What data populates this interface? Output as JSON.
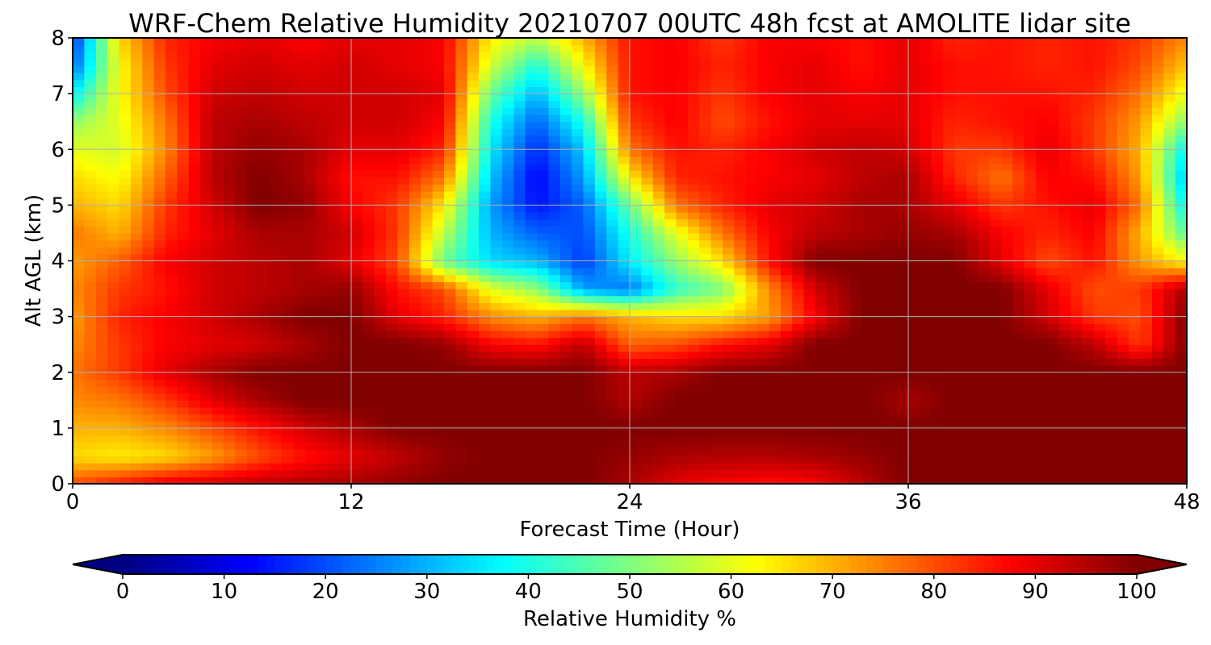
{
  "chart_data": {
    "type": "heatmap",
    "title": "WRF-Chem Relative Humidity 20210707 00UTC 48h fcst at AMOLITE lidar site",
    "xlabel": "Forecast Time (Hour)",
    "ylabel": "Alt AGL (km)",
    "xlim": [
      0,
      48
    ],
    "ylim": [
      0,
      8
    ],
    "x_ticks": [
      0,
      12,
      24,
      36,
      48
    ],
    "y_ticks": [
      0,
      1,
      2,
      3,
      4,
      5,
      6,
      7,
      8
    ],
    "grid": true,
    "colormap": "jet",
    "x": [
      0,
      2,
      4,
      6,
      8,
      10,
      12,
      14,
      16,
      18,
      20,
      22,
      24,
      26,
      28,
      30,
      32,
      34,
      36,
      38,
      40,
      42,
      44,
      46,
      48
    ],
    "y": [
      0,
      0.5,
      1,
      1.5,
      2,
      2.5,
      3,
      3.5,
      4,
      4.5,
      5,
      5.5,
      6,
      6.5,
      7,
      7.5,
      8
    ],
    "z": [
      [
        80,
        85,
        90,
        92,
        94,
        95,
        96,
        98,
        100,
        100,
        100,
        100,
        96,
        90,
        88,
        86,
        88,
        94,
        100,
        100,
        100,
        100,
        100,
        100,
        100
      ],
      [
        66,
        64,
        66,
        72,
        80,
        86,
        90,
        94,
        98,
        100,
        100,
        100,
        98,
        96,
        95,
        95,
        96,
        98,
        100,
        100,
        100,
        100,
        100,
        100,
        100
      ],
      [
        70,
        70,
        74,
        80,
        86,
        92,
        96,
        100,
        100,
        100,
        100,
        100,
        100,
        100,
        100,
        100,
        100,
        100,
        100,
        100,
        100,
        100,
        100,
        100,
        100
      ],
      [
        74,
        76,
        82,
        90,
        96,
        100,
        100,
        100,
        100,
        100,
        100,
        100,
        95,
        100,
        100,
        100,
        100,
        100,
        96,
        100,
        100,
        100,
        100,
        100,
        100
      ],
      [
        76,
        82,
        90,
        96,
        100,
        100,
        100,
        100,
        100,
        100,
        100,
        100,
        94,
        96,
        100,
        100,
        100,
        100,
        100,
        100,
        100,
        100,
        100,
        100,
        100
      ],
      [
        74,
        82,
        88,
        90,
        92,
        96,
        100,
        100,
        98,
        88,
        86,
        94,
        78,
        80,
        86,
        90,
        100,
        100,
        100,
        100,
        100,
        100,
        94,
        82,
        100
      ],
      [
        72,
        84,
        88,
        92,
        96,
        100,
        100,
        90,
        84,
        74,
        70,
        76,
        70,
        66,
        66,
        72,
        88,
        100,
        100,
        100,
        100,
        92,
        82,
        80,
        100
      ],
      [
        74,
        82,
        86,
        92,
        94,
        96,
        98,
        86,
        80,
        60,
        52,
        28,
        24,
        42,
        50,
        74,
        92,
        100,
        100,
        100,
        100,
        90,
        80,
        82,
        96
      ],
      [
        72,
        78,
        88,
        92,
        94,
        96,
        90,
        80,
        48,
        34,
        30,
        18,
        36,
        52,
        66,
        86,
        100,
        100,
        100,
        100,
        90,
        80,
        86,
        72,
        62
      ],
      [
        76,
        70,
        84,
        90,
        96,
        96,
        92,
        82,
        56,
        30,
        22,
        20,
        40,
        60,
        76,
        88,
        94,
        96,
        98,
        96,
        88,
        84,
        88,
        70,
        46
      ],
      [
        70,
        66,
        82,
        92,
        100,
        98,
        88,
        82,
        64,
        28,
        14,
        22,
        48,
        76,
        84,
        90,
        92,
        96,
        96,
        90,
        82,
        86,
        90,
        76,
        36
      ],
      [
        66,
        62,
        78,
        94,
        100,
        96,
        86,
        86,
        76,
        32,
        12,
        28,
        64,
        84,
        86,
        88,
        90,
        94,
        96,
        84,
        76,
        88,
        86,
        72,
        30
      ],
      [
        60,
        58,
        74,
        94,
        98,
        96,
        90,
        90,
        84,
        36,
        16,
        32,
        76,
        86,
        84,
        88,
        92,
        94,
        92,
        82,
        82,
        90,
        82,
        70,
        36
      ],
      [
        52,
        60,
        76,
        94,
        96,
        94,
        92,
        92,
        88,
        40,
        22,
        40,
        82,
        88,
        80,
        86,
        90,
        90,
        90,
        84,
        86,
        88,
        82,
        72,
        50
      ],
      [
        36,
        62,
        80,
        92,
        94,
        92,
        92,
        92,
        90,
        48,
        30,
        52,
        86,
        88,
        82,
        88,
        90,
        88,
        90,
        86,
        86,
        86,
        84,
        76,
        60
      ],
      [
        22,
        62,
        82,
        90,
        92,
        90,
        92,
        90,
        88,
        58,
        40,
        62,
        86,
        88,
        84,
        88,
        90,
        86,
        90,
        86,
        86,
        84,
        86,
        80,
        68
      ],
      [
        16,
        66,
        84,
        88,
        90,
        88,
        90,
        90,
        88,
        64,
        56,
        70,
        86,
        88,
        82,
        88,
        88,
        86,
        90,
        84,
        86,
        84,
        86,
        82,
        74
      ]
    ],
    "colorbar": {
      "label": "Relative Humidity %",
      "min": 0,
      "max": 100,
      "ticks": [
        0,
        10,
        20,
        30,
        40,
        50,
        60,
        70,
        80,
        90,
        100
      ],
      "extend": "both"
    }
  }
}
